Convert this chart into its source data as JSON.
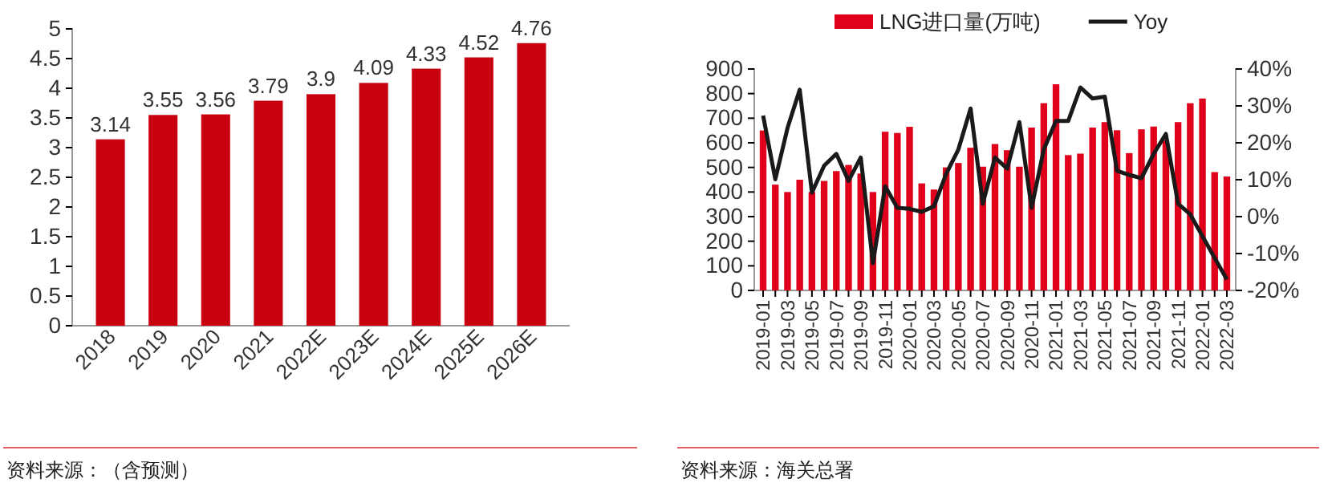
{
  "chart_data": [
    {
      "type": "bar",
      "categories": [
        "2018",
        "2019",
        "2020",
        "2021",
        "2022E",
        "2023E",
        "2024E",
        "2025E",
        "2026E"
      ],
      "values": [
        3.14,
        3.55,
        3.56,
        3.79,
        3.9,
        4.09,
        4.33,
        4.52,
        4.76
      ],
      "color": "#c8000f",
      "data_labels": true,
      "ylim": [
        0,
        5
      ],
      "yticks": [
        0,
        {
          "value": 0.5,
          "label": "0.5"
        },
        1,
        {
          "value": 1.5,
          "label": "1.5"
        },
        2,
        {
          "value": 2.5,
          "label": "2.5"
        },
        3,
        {
          "value": 3.5,
          "label": "3.5"
        },
        4,
        {
          "value": 4.5,
          "label": "4.5"
        },
        5
      ],
      "grid": false,
      "legend": false,
      "annotations": [
        "资料来源：（含预测）"
      ]
    },
    {
      "type": "bar",
      "categories": [
        "2019-01",
        null,
        "2019-03",
        null,
        "2019-05",
        null,
        "2019-07",
        null,
        "2019-09",
        null,
        "2019-11",
        null,
        "2020-01",
        null,
        "2020-03",
        null,
        "2020-05",
        null,
        "2020-07",
        null,
        "2020-09",
        null,
        "2020-11",
        null,
        "2021-01",
        null,
        "2021-03",
        null,
        "2021-05",
        null,
        "2021-07",
        null,
        "2021-09",
        null,
        "2021-11",
        null,
        "2022-01",
        null,
        "2022-03"
      ],
      "series": [
        {
          "type": "bar",
          "name": "LNG进口量(万吨)",
          "color": "#e0001b",
          "values": [
            650,
            430,
            400,
            450,
            400,
            445,
            485,
            510,
            475,
            400,
            645,
            640,
            665,
            435,
            410,
            500,
            518,
            580,
            503,
            595,
            570,
            503,
            662,
            761,
            838,
            550,
            556,
            662,
            684,
            651,
            558,
            655,
            666,
            610,
            684,
            761,
            780,
            481,
            463
          ]
        },
        {
          "type": "line",
          "name": "Yoy",
          "color": "#1a1a1a",
          "axis": "y2",
          "values": [
            27.4,
            10.1,
            24,
            34.4,
            6.5,
            13.8,
            17,
            9.7,
            16,
            -12.6,
            8.2,
            2.4,
            2.1,
            1.3,
            2.8,
            11.6,
            18.2,
            29.3,
            3.5,
            16,
            13,
            25.6,
            2.4,
            18.2,
            25.9,
            25.9,
            35,
            32,
            32.5,
            12.4,
            11.3,
            10.4,
            17,
            22.4,
            3.5,
            0.6,
            -5.3,
            -11.2,
            -17
          ]
        }
      ],
      "ylim": [
        0,
        900
      ],
      "yticks": [
        0,
        100,
        200,
        300,
        400,
        500,
        600,
        700,
        800,
        900
      ],
      "y2lim": [
        -20,
        40
      ],
      "y2ticks": [
        {
          "value": -20,
          "label": "-20%"
        },
        {
          "value": -10,
          "label": "-10%"
        },
        {
          "value": 0,
          "label": "0%"
        },
        {
          "value": 10,
          "label": "10%"
        },
        {
          "value": 20,
          "label": "20%"
        },
        {
          "value": 30,
          "label": "30%"
        },
        {
          "value": 40,
          "label": "40%"
        }
      ],
      "legend": "top",
      "grid": false,
      "marker": "none",
      "line_style": "solid",
      "annotations": [
        "资料来源：海关总署"
      ]
    }
  ]
}
